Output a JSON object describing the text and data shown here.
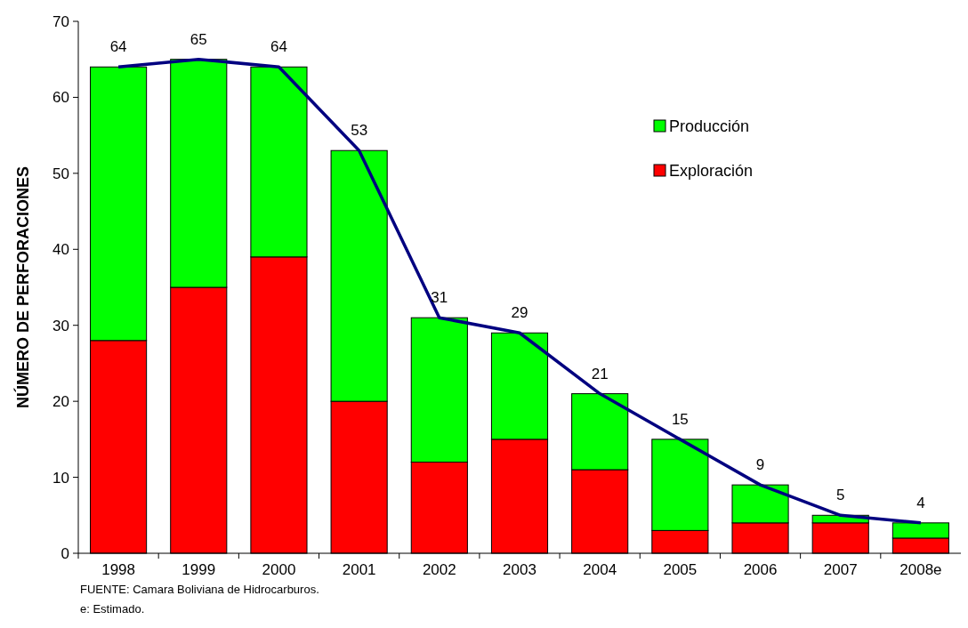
{
  "chart_data": {
    "type": "bar",
    "stacked": true,
    "ylabel": "NÚMERO DE PERFORACIONES",
    "categories": [
      "1998",
      "1999",
      "2000",
      "2001",
      "2002",
      "2003",
      "2004",
      "2005",
      "2006",
      "2007",
      "2008e"
    ],
    "series": [
      {
        "name": "Exploración",
        "color": "#ff0000",
        "values": [
          28,
          35,
          39,
          20,
          12,
          15,
          11,
          3,
          4,
          4,
          2
        ]
      },
      {
        "name": "Producción",
        "color": "#00ff00",
        "values": [
          36,
          30,
          25,
          33,
          19,
          14,
          10,
          12,
          5,
          1,
          2
        ]
      },
      {
        "type": "line",
        "color": "#000080",
        "values": [
          64,
          65,
          64,
          53,
          31,
          29,
          21,
          15,
          9,
          5,
          4
        ],
        "value_labels": [
          "64",
          "65",
          "64",
          "53",
          "31",
          "29",
          "21",
          "15",
          "9",
          "5",
          "4"
        ]
      }
    ],
    "ylim": [
      0,
      70
    ],
    "yticks": [
      0,
      10,
      20,
      30,
      40,
      50,
      60,
      70
    ],
    "legend": "right",
    "grid": false,
    "annotations": [
      "FUENTE: Camara Boliviana de Hidrocarburos.",
      "e: Estimado."
    ]
  }
}
